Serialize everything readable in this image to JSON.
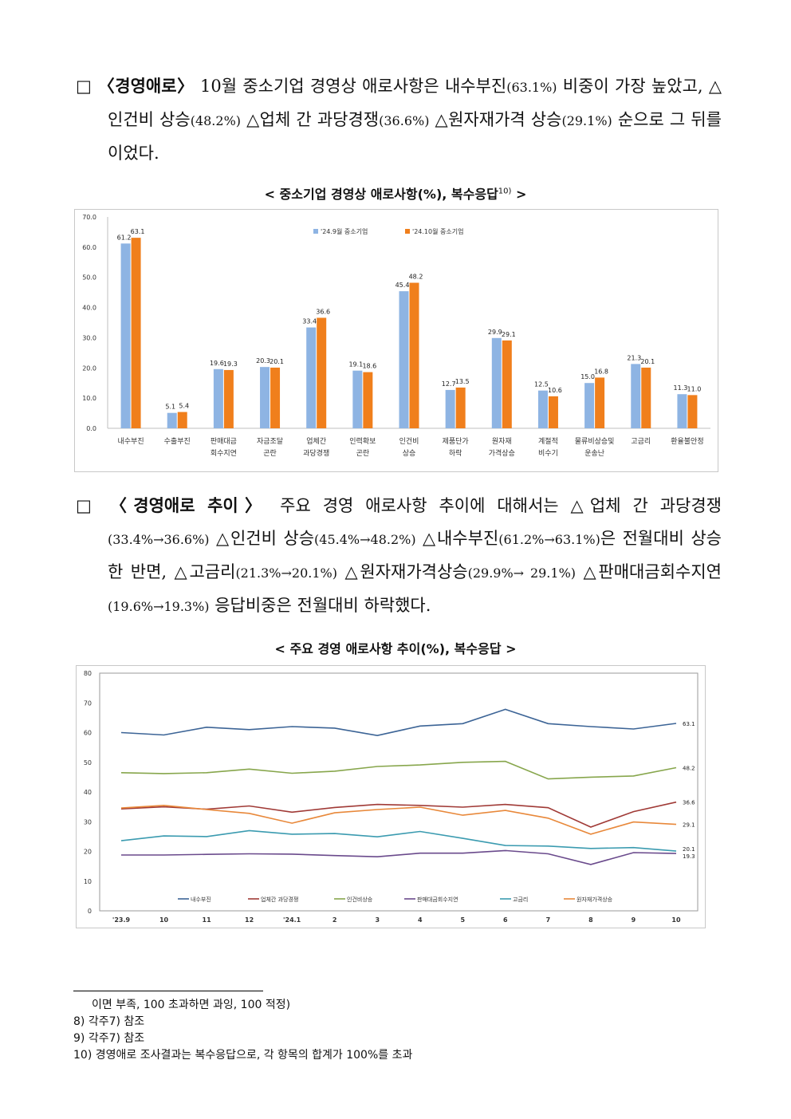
{
  "section1": {
    "bullet": "□",
    "lead": "〈경영애로〉",
    "line1": " 10월 중소기업 경영상 애로사항은 내수부진",
    "val1": "(63.1%)",
    "line1b": " 비중이 가장 높았고, △인건비 상승",
    "val2": "(48.2%)",
    "line2b": " △업체 간 과당경쟁",
    "val3": "(36.6%)",
    "line2c": " △원자재가격 상승",
    "val4": "(29.1%)",
    "line3": " 순으로 그 뒤를 이었다."
  },
  "chart1_caption": "< 중소기업 경영상 애로사항(%), 복수응답",
  "chart1_caption_sup": "10)",
  "chart1_caption_end": " >",
  "section2": {
    "bullet": "□",
    "lead": "〈경영애로 추이〉",
    "text_a": " 주요 경영 애로사항 추이에 대해서는 △업체 간 과당경쟁",
    "v1": "(33.4%→36.6%)",
    "text_b": " △인건비 상승",
    "v2": "(45.4%→48.2%)",
    "text_c": " △내수부진",
    "v3": "(61.2%→63.1%)",
    "text_d": "은 전월대비 상승한 반면, △고금리",
    "v4": "(21.3%→20.1%)",
    "text_e": " △원자재가격상승",
    "v5": "(29.9%→ 29.1%)",
    "text_f": " △판매대금회수지연",
    "v6": "(19.6%→19.3%)",
    "text_g": " 응답비중은 전월대비 하락했다."
  },
  "chart2_caption": "< 주요 경영 애로사항 추이(%), 복수응답 >",
  "footnotes": [
    "이면 부족, 100 초과하면 과잉, 100 적정)",
    "8) 각주7) 참조",
    "9) 각주7) 참조",
    "10) 경영애로 조사결과는 복수응답으로, 각 항목의 합계가 100%를 초과"
  ],
  "chart_data": [
    {
      "type": "bar",
      "title": "",
      "categories": [
        "내수부진",
        "수출부진",
        "판매대금\n회수지연",
        "자금조달\n곤란",
        "업체간\n과당경쟁",
        "인력확보\n곤란",
        "인건비\n상승",
        "제품단가\n하락",
        "원자재\n가격상승",
        "계절적\n비수기",
        "물류비상승및\n운송난",
        "고금리",
        "환율불안정"
      ],
      "series": [
        {
          "name": "'24.9월 중소기업",
          "color": "#8eb4e3",
          "values": [
            61.2,
            5.1,
            19.6,
            20.3,
            33.4,
            19.1,
            45.4,
            12.7,
            29.9,
            12.5,
            15.0,
            21.3,
            11.3
          ]
        },
        {
          "name": "'24.10월 중소기업",
          "color": "#f07f1c",
          "values": [
            63.1,
            5.4,
            19.3,
            20.1,
            36.6,
            18.6,
            48.2,
            13.5,
            29.1,
            10.6,
            16.8,
            20.1,
            11.0
          ]
        }
      ],
      "yticks": [
        "0.0",
        "10.0",
        "20.0",
        "30.0",
        "40.0",
        "50.0",
        "60.0",
        "70.0"
      ],
      "ylim": [
        0,
        70
      ],
      "legend": "top"
    },
    {
      "type": "line",
      "title": "",
      "x": [
        "'23.9",
        "10",
        "11",
        "12",
        "'24.1",
        "2",
        "3",
        "4",
        "5",
        "6",
        "7",
        "8",
        "9",
        "10"
      ],
      "yticks": [
        "0",
        "10",
        "20",
        "30",
        "40",
        "50",
        "60",
        "70",
        "80"
      ],
      "ylim": [
        0,
        80
      ],
      "legend": "bottom",
      "series": [
        {
          "name": "내수부진",
          "color": "#3c6496",
          "end_label": "63.1",
          "values": [
            60.0,
            59.2,
            61.8,
            61.0,
            62.0,
            61.5,
            59.0,
            62.2,
            63.0,
            67.8,
            63.0,
            62.0,
            61.2,
            63.1
          ]
        },
        {
          "name": "업체간 과당경쟁",
          "color": "#a03a36",
          "end_label": "36.6",
          "values": [
            34.3,
            35.0,
            34.2,
            35.3,
            33.2,
            34.8,
            35.8,
            35.5,
            34.9,
            35.8,
            34.7,
            28.2,
            33.4,
            36.6
          ]
        },
        {
          "name": "인건비상승",
          "color": "#87a64c",
          "end_label": "48.2",
          "values": [
            46.5,
            46.2,
            46.5,
            47.7,
            46.3,
            47.0,
            48.6,
            49.1,
            50.0,
            50.3,
            44.4,
            45.0,
            45.4,
            48.2
          ]
        },
        {
          "name": "판매대금회수지연",
          "color": "#6a4a8c",
          "end_label": "19.3",
          "values": [
            18.8,
            18.8,
            19.0,
            19.2,
            19.1,
            18.6,
            18.2,
            19.4,
            19.4,
            20.3,
            19.2,
            15.6,
            19.6,
            19.3
          ]
        },
        {
          "name": "고금리",
          "color": "#3b9bb0",
          "end_label": "20.1",
          "values": [
            23.6,
            25.2,
            25.0,
            27.0,
            25.8,
            26.0,
            24.9,
            26.7,
            24.4,
            22.0,
            21.8,
            21.0,
            21.3,
            20.1
          ]
        },
        {
          "name": "원자재가격상승",
          "color": "#e8883a",
          "end_label": "29.1",
          "values": [
            34.6,
            35.5,
            34.1,
            32.8,
            29.5,
            33.0,
            34.1,
            34.9,
            32.2,
            33.8,
            31.2,
            25.8,
            29.9,
            29.1
          ]
        }
      ]
    }
  ]
}
